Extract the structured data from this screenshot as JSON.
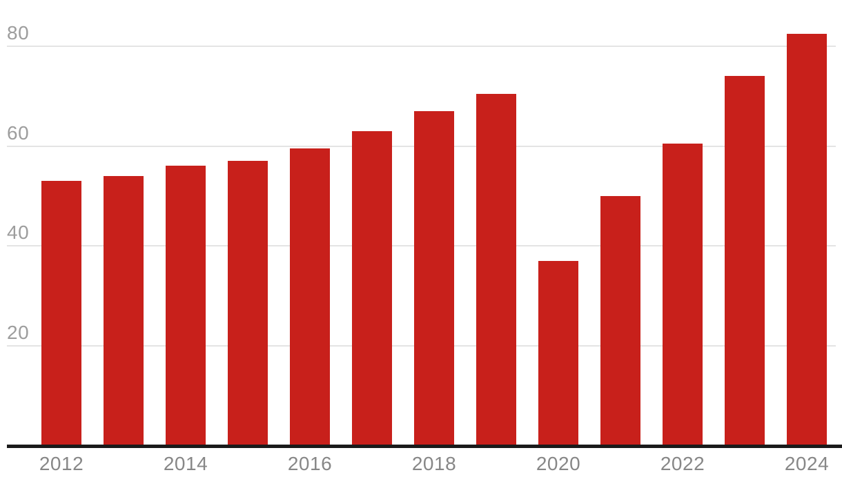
{
  "chart_data": {
    "type": "bar",
    "title": "",
    "xlabel": "",
    "ylabel": "",
    "categories": [
      "2012",
      "2013",
      "2014",
      "2015",
      "2016",
      "2017",
      "2018",
      "2019",
      "2020",
      "2021",
      "2022",
      "2023",
      "2024"
    ],
    "values": [
      53,
      54,
      56,
      57,
      59.5,
      63,
      67,
      70.5,
      37,
      50,
      60.5,
      74,
      82.5
    ],
    "ylim": [
      0,
      89
    ],
    "yticks": [
      20,
      40,
      60,
      80
    ],
    "xtick_labels": [
      "2012",
      "2014",
      "2016",
      "2018",
      "2020",
      "2022",
      "2024"
    ],
    "grid": true,
    "legend": false,
    "colors": {
      "bar": "#c8201b",
      "gridline": "#e4e4e4",
      "axis_line": "#1a1a1a",
      "ytick_label": "#9d9d9d",
      "xtick_label": "#878787",
      "background": "#ffffff"
    }
  }
}
